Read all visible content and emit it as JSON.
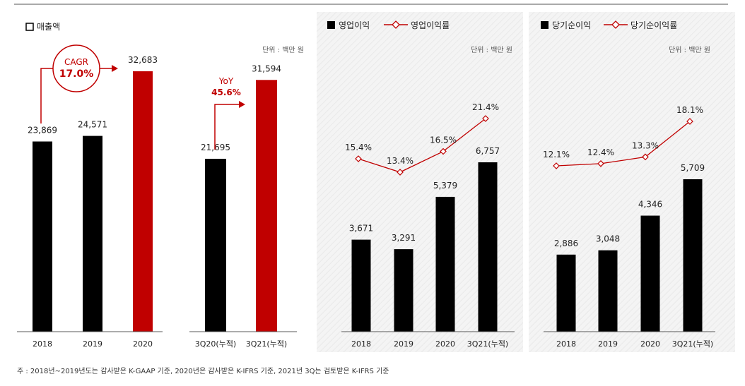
{
  "colors": {
    "black": "#000000",
    "red": "#c00000",
    "line_red": "#c00000",
    "panel_bg": "#f2f2f2",
    "axis": "#595959"
  },
  "chart_data": [
    {
      "type": "bar",
      "legend": "매출액",
      "unit": "",
      "categories": [
        "2018",
        "2019",
        "2020"
      ],
      "values": [
        23869,
        24571,
        32683
      ],
      "value_labels": [
        "23,869",
        "24,571",
        "32,683"
      ],
      "bar_colors": [
        "#000000",
        "#000000",
        "#c00000"
      ],
      "callout": {
        "line1": "CAGR",
        "line2": "17.0%"
      }
    },
    {
      "type": "bar",
      "unit": "단위 : 백만 원",
      "categories": [
        "3Q20(누적)",
        "3Q21(누적)"
      ],
      "values": [
        21695,
        31594
      ],
      "value_labels": [
        "21,695",
        "31,594"
      ],
      "bar_colors": [
        "#000000",
        "#c00000"
      ],
      "callout": {
        "line1": "YoY",
        "line2": "45.6%"
      }
    },
    {
      "type": "bar+line",
      "unit": "단위 : 백만 원",
      "categories": [
        "2018",
        "2019",
        "2020",
        "3Q21(누적)"
      ],
      "series": [
        {
          "name": "영업이익",
          "type": "bar",
          "values": [
            3671,
            3291,
            5379,
            6757
          ],
          "labels": [
            "3,671",
            "3,291",
            "5,379",
            "6,757"
          ]
        },
        {
          "name": "영업이익률",
          "type": "line",
          "values": [
            15.4,
            13.4,
            16.5,
            21.4
          ],
          "labels": [
            "15.4%",
            "13.4%",
            "16.5%",
            "21.4%"
          ]
        }
      ]
    },
    {
      "type": "bar+line",
      "unit": "단위 : 백만 원",
      "categories": [
        "2018",
        "2019",
        "2020",
        "3Q21(누적)"
      ],
      "series": [
        {
          "name": "당기순이익",
          "type": "bar",
          "values": [
            2886,
            3048,
            4346,
            5709
          ],
          "labels": [
            "2,886",
            "3,048",
            "4,346",
            "5,709"
          ]
        },
        {
          "name": "당기순이익률",
          "type": "line",
          "values": [
            12.1,
            12.4,
            13.3,
            18.1
          ],
          "labels": [
            "12.1%",
            "12.4%",
            "13.3%",
            "18.1%"
          ]
        }
      ]
    }
  ],
  "footnote": "주 : 2018년~2019년도는 감사받은 K-GAAP 기준, 2020년은 감사받은 K-IFRS 기준, 2021년 3Q는 검토받은 K-IFRS 기준"
}
